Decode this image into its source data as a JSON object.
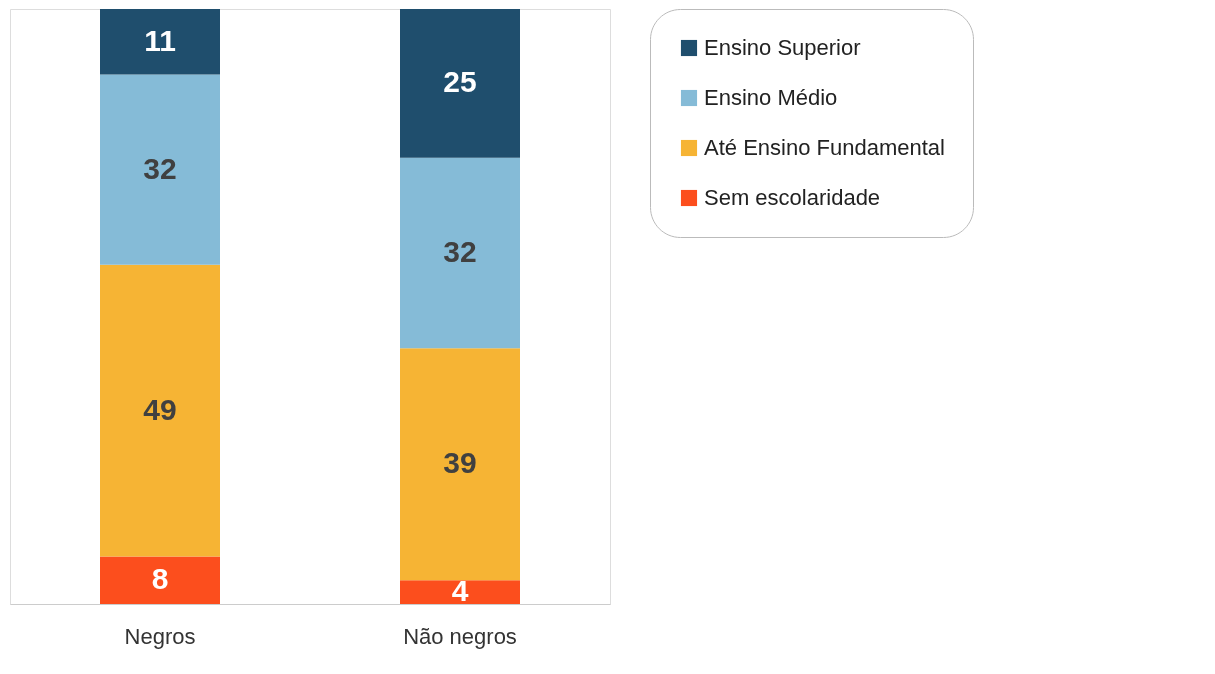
{
  "chart_data": {
    "type": "bar",
    "stacked": true,
    "categories": [
      "Negros",
      "Não negros"
    ],
    "series": [
      {
        "name": "Sem escolaridade",
        "color": "#fc4e1d",
        "values": [
          8,
          4
        ]
      },
      {
        "name": "Até Ensino Fundamental",
        "color": "#f6b434",
        "values": [
          49,
          39
        ]
      },
      {
        "name": "Ensino Médio",
        "color": "#85bbd7",
        "values": [
          32,
          32
        ]
      },
      {
        "name": "Ensino Superior",
        "color": "#1f4e6d",
        "values": [
          11,
          25
        ]
      }
    ],
    "data_labels": true,
    "legend": "right",
    "grid": false
  }
}
